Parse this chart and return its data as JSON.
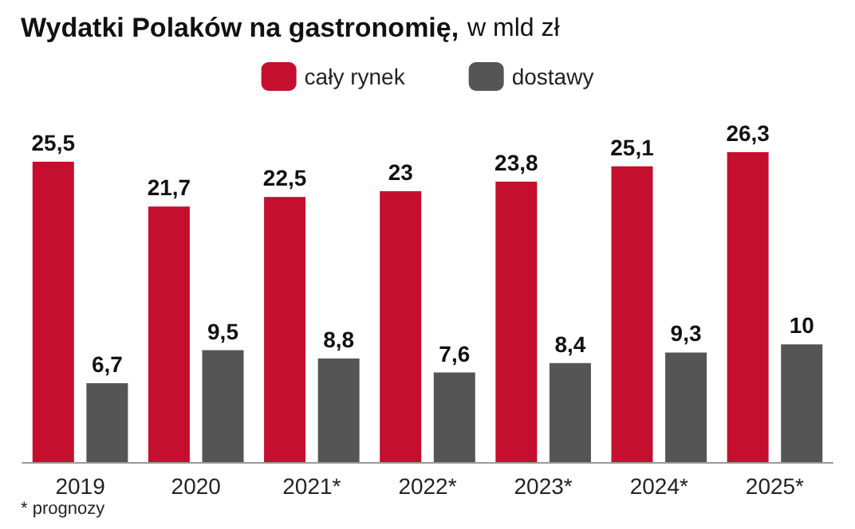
{
  "chart_data": {
    "type": "bar",
    "title": "Wydatki Polaków na gastronomię,",
    "subtitle": "w mld zł",
    "categories": [
      "2019",
      "2020",
      "2021*",
      "2022*",
      "2023*",
      "2024*",
      "2025*"
    ],
    "series": [
      {
        "name": "cały rynek",
        "color": "#c40f2f",
        "values": [
          25.5,
          21.7,
          22.5,
          23,
          23.8,
          25.1,
          26.3
        ],
        "value_labels": [
          "25,5",
          "21,7",
          "22,5",
          "23",
          "23,8",
          "25,1",
          "26,3"
        ]
      },
      {
        "name": "dostawy",
        "color": "#555555",
        "values": [
          6.7,
          9.5,
          8.8,
          7.6,
          8.4,
          9.3,
          10
        ],
        "value_labels": [
          "6,7",
          "9,5",
          "8,8",
          "7,6",
          "8,4",
          "9,3",
          "10"
        ]
      }
    ],
    "legend": "top",
    "grid": false,
    "annotations": [
      "* prognozy"
    ]
  }
}
